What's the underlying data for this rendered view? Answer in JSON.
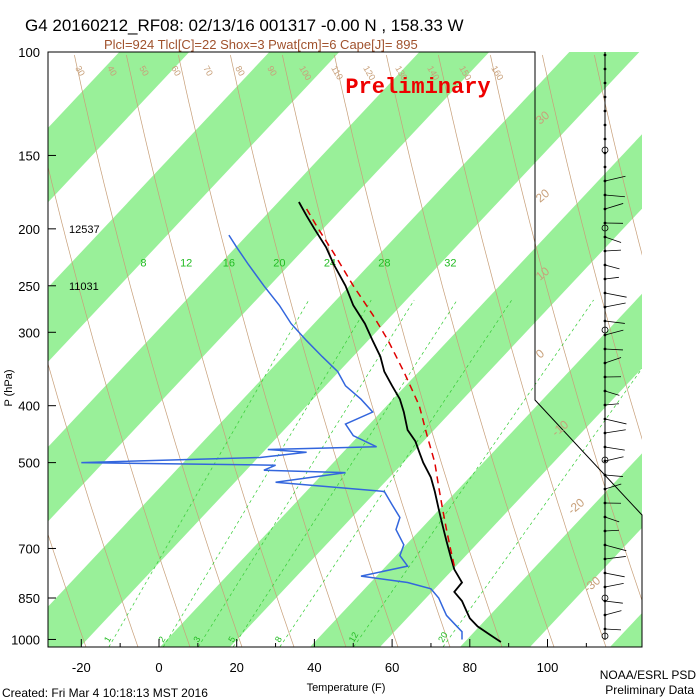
{
  "header": {
    "title": "G4 20160212_RF08: 02/13/16 001317  -0.00 N , 158.33 W",
    "subtitle": "Plcl=924 Tlcl[C]=22 Shox=3 Pwat[cm]=6 Cape[J]= 895",
    "watermark": "Preliminary"
  },
  "footer": {
    "created": "Created: Fri Mar  4 10:18:13 MST 2016",
    "org": "NOAA/ESRL PSD",
    "note": "Preliminary Data"
  },
  "colors": {
    "stripe": "#99f099",
    "temperature": "#000000",
    "dewpoint": "#3366dd",
    "parcel": "#e00000",
    "adiabat": "#c8a07a",
    "mixing_ratio": "#33cc33",
    "watermark": "#ee0000"
  },
  "chart_data": {
    "type": "line",
    "title": "G4 20160212_RF08: 02/13/16 001317  -0.00 N , 158.33 W",
    "xlabel": "Temperature (F)",
    "ylabel": "P (hPa)",
    "xlim": [
      -28,
      112
    ],
    "ylim": [
      1030,
      100
    ],
    "y_scale": "log",
    "x_ticks": [
      -20,
      0,
      20,
      40,
      60,
      80,
      100
    ],
    "y_ticks": [
      100,
      150,
      200,
      250,
      300,
      400,
      500,
      700,
      850,
      1000
    ],
    "height_labels": [
      {
        "p": 200,
        "label": "12537"
      },
      {
        "p": 250,
        "label": "11031"
      }
    ],
    "mixing_ratio_labels_top": [
      {
        "label": "8",
        "x": -4
      },
      {
        "label": "12",
        "x": 7
      },
      {
        "label": "16",
        "x": 18
      },
      {
        "label": "20",
        "x": 31
      },
      {
        "label": "24",
        "x": 44
      },
      {
        "label": "28",
        "x": 58
      },
      {
        "label": "32",
        "x": 75
      }
    ],
    "mixing_ratio_labels_bottom": [
      {
        "label": "1",
        "x": -16
      },
      {
        "label": "2",
        "x": -2
      },
      {
        "label": "3",
        "x": 7
      },
      {
        "label": "5",
        "x": 16
      },
      {
        "label": "8",
        "x": 28
      },
      {
        "label": "12",
        "x": 47
      },
      {
        "label": "20",
        "x": 70
      }
    ],
    "adiabat_labels": [
      "30",
      "40",
      "50",
      "60",
      "70",
      "80",
      "90",
      "100",
      "110",
      "120",
      "130",
      "140",
      "150",
      "160"
    ],
    "isotherm_labels_right": [
      "30",
      "20",
      "10",
      "0",
      "-10",
      "-20",
      "-30"
    ],
    "series": [
      {
        "name": "temperature",
        "points": [
          [
            180,
            36
          ],
          [
            190,
            38
          ],
          [
            200,
            40
          ],
          [
            215,
            43
          ],
          [
            230,
            45
          ],
          [
            250,
            48
          ],
          [
            270,
            50
          ],
          [
            290,
            53
          ],
          [
            310,
            55
          ],
          [
            330,
            57
          ],
          [
            350,
            58
          ],
          [
            370,
            60
          ],
          [
            390,
            62
          ],
          [
            410,
            63
          ],
          [
            440,
            64
          ],
          [
            460,
            66
          ],
          [
            480,
            67
          ],
          [
            500,
            68
          ],
          [
            530,
            70
          ],
          [
            560,
            71
          ],
          [
            600,
            72
          ],
          [
            640,
            73
          ],
          [
            680,
            74
          ],
          [
            720,
            75
          ],
          [
            760,
            76
          ],
          [
            800,
            78
          ],
          [
            830,
            76
          ],
          [
            860,
            78
          ],
          [
            890,
            79
          ],
          [
            920,
            80
          ],
          [
            950,
            82
          ],
          [
            980,
            85
          ],
          [
            1010,
            88
          ]
        ]
      },
      {
        "name": "dewpoint",
        "points": [
          [
            205,
            18
          ],
          [
            215,
            20
          ],
          [
            230,
            23
          ],
          [
            250,
            27
          ],
          [
            270,
            31
          ],
          [
            290,
            34
          ],
          [
            310,
            38
          ],
          [
            330,
            42
          ],
          [
            350,
            46
          ],
          [
            370,
            48
          ],
          [
            390,
            52
          ],
          [
            410,
            55
          ],
          [
            430,
            48
          ],
          [
            450,
            50
          ],
          [
            470,
            56
          ],
          [
            475,
            28
          ],
          [
            480,
            38
          ],
          [
            490,
            26
          ],
          [
            500,
            -20
          ],
          [
            505,
            30
          ],
          [
            515,
            27
          ],
          [
            520,
            48
          ],
          [
            540,
            30
          ],
          [
            560,
            58
          ],
          [
            590,
            60
          ],
          [
            620,
            62
          ],
          [
            650,
            61
          ],
          [
            690,
            63
          ],
          [
            720,
            62
          ],
          [
            750,
            64
          ],
          [
            780,
            52
          ],
          [
            800,
            64
          ],
          [
            820,
            70
          ],
          [
            850,
            72
          ],
          [
            880,
            73
          ],
          [
            910,
            74
          ],
          [
            940,
            76
          ],
          [
            970,
            78
          ],
          [
            1000,
            78
          ]
        ]
      },
      {
        "name": "parcel",
        "points": [
          [
            185,
            38
          ],
          [
            200,
            41
          ],
          [
            220,
            45
          ],
          [
            250,
            50
          ],
          [
            280,
            55
          ],
          [
            310,
            59
          ],
          [
            350,
            63
          ],
          [
            400,
            67
          ],
          [
            450,
            69
          ],
          [
            500,
            71
          ],
          [
            550,
            72
          ],
          [
            600,
            73
          ],
          [
            650,
            74
          ],
          [
            700,
            75
          ],
          [
            750,
            76
          ]
        ]
      }
    ],
    "wind_column_x": 605
  }
}
